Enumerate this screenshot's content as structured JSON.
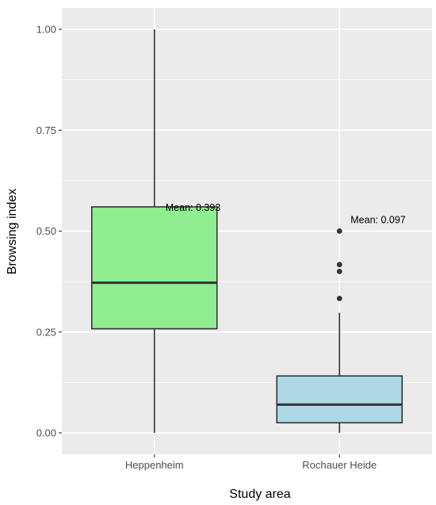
{
  "chart_data": {
    "type": "box",
    "xlabel": "Study area",
    "ylabel": "Browsing index",
    "ylim": [
      -0.035,
      1.05
    ],
    "yticks": [
      0.0,
      0.25,
      0.5,
      0.75,
      1.0
    ],
    "ytick_labels": [
      "0.00",
      "0.25",
      "0.50",
      "0.75",
      "1.00"
    ],
    "grid": true,
    "categories": [
      "Heppenheim",
      "Rochauer Heide"
    ],
    "boxes": [
      {
        "category": "Heppenheim",
        "min": 0.0,
        "q1": 0.258,
        "median": 0.372,
        "q3": 0.56,
        "max": 1.0,
        "outliers": [],
        "mean_label": "Mean: 0.393",
        "fill": "#90ee90"
      },
      {
        "category": "Rochauer Heide",
        "min": 0.0,
        "q1": 0.025,
        "median": 0.07,
        "q3": 0.141,
        "max": 0.298,
        "outliers": [
          0.333,
          0.4,
          0.417,
          0.5
        ],
        "mean_label": "Mean: 0.097",
        "fill": "#add8e6"
      }
    ],
    "colors": {
      "panel": "#ebebeb",
      "grid": "#ffffff",
      "box_stroke": "#333333",
      "point": "#333333"
    }
  }
}
